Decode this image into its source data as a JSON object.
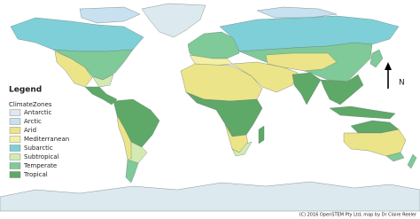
{
  "legend": {
    "title": "Legend",
    "subtitle": "ClimateZones",
    "items": [
      {
        "label": "Antarctic",
        "color": "#dce9ee"
      },
      {
        "label": "Arctic",
        "color": "#c8e0ef"
      },
      {
        "label": "Arid",
        "color": "#ece488"
      },
      {
        "label": "Mediterranean",
        "color": "#f3f0a6"
      },
      {
        "label": "Subarctic",
        "color": "#7ecfd8"
      },
      {
        "label": "Subtropical",
        "color": "#d3ebb2"
      },
      {
        "label": "Temperate",
        "color": "#7fca98"
      },
      {
        "label": "Tropical",
        "color": "#5ea868"
      }
    ]
  },
  "north_label": "N",
  "credit": "(C) 2016 OpenSTEM Pty Ltd, map by Dr Claire Reeler"
}
